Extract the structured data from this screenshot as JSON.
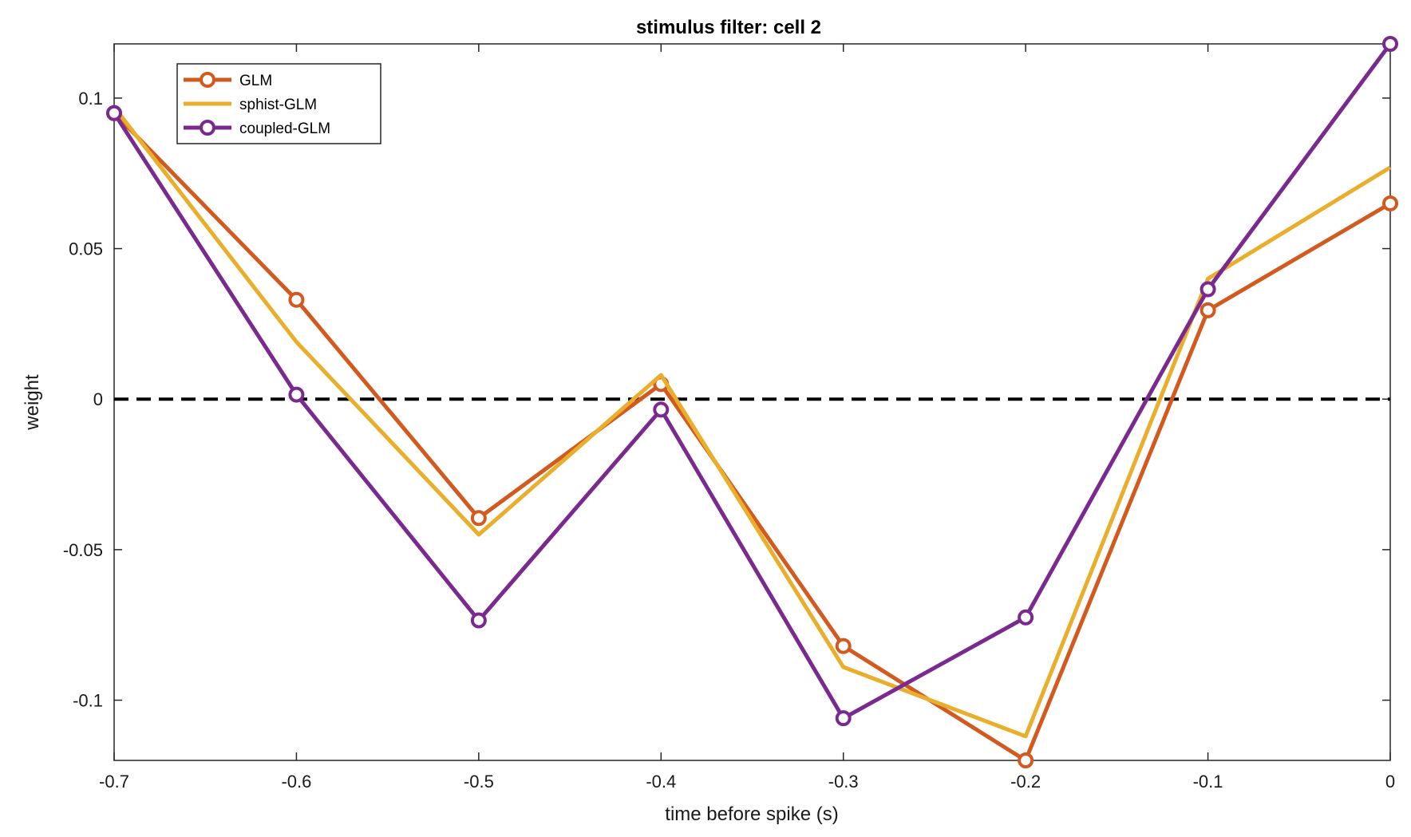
{
  "chart_data": {
    "type": "line",
    "title": "stimulus filter: cell 2",
    "xlabel": "time before spike (s)",
    "ylabel": "weight",
    "xlim": [
      -0.7,
      0
    ],
    "ylim": [
      -0.12,
      0.118
    ],
    "xticks": [
      -0.7,
      -0.6,
      -0.5,
      -0.4,
      -0.3,
      -0.2,
      -0.1,
      0
    ],
    "xtick_labels": [
      "-0.7",
      "-0.6",
      "-0.5",
      "-0.4",
      "-0.3",
      "-0.2",
      "-0.1",
      "0"
    ],
    "yticks": [
      -0.1,
      -0.05,
      0,
      0.05,
      0.1
    ],
    "ytick_labels": [
      "-0.1",
      "-0.05",
      "0",
      "0.05",
      "0.1"
    ],
    "grid": false,
    "legend_position": "top-left",
    "reference_line": {
      "y": 0,
      "style": "dashed",
      "color": "#000000"
    },
    "x": [
      -0.7,
      -0.6,
      -0.5,
      -0.4,
      -0.3,
      -0.2,
      -0.1,
      0
    ],
    "series": [
      {
        "name": "GLM",
        "color": "#D35A1F",
        "marker": "circle",
        "values": [
          0.095,
          0.033,
          -0.0395,
          0.005,
          -0.082,
          -0.12,
          0.0295,
          0.065
        ]
      },
      {
        "name": "sphist-GLM",
        "color": "#E8AE2C",
        "marker": "none",
        "values": [
          0.097,
          0.019,
          -0.045,
          0.008,
          -0.089,
          -0.112,
          0.04,
          0.077
        ]
      },
      {
        "name": "coupled-GLM",
        "color": "#7A2A8E",
        "marker": "circle",
        "values": [
          0.095,
          0.0015,
          -0.0735,
          -0.0035,
          -0.106,
          -0.0725,
          0.0365,
          0.118
        ]
      }
    ]
  }
}
